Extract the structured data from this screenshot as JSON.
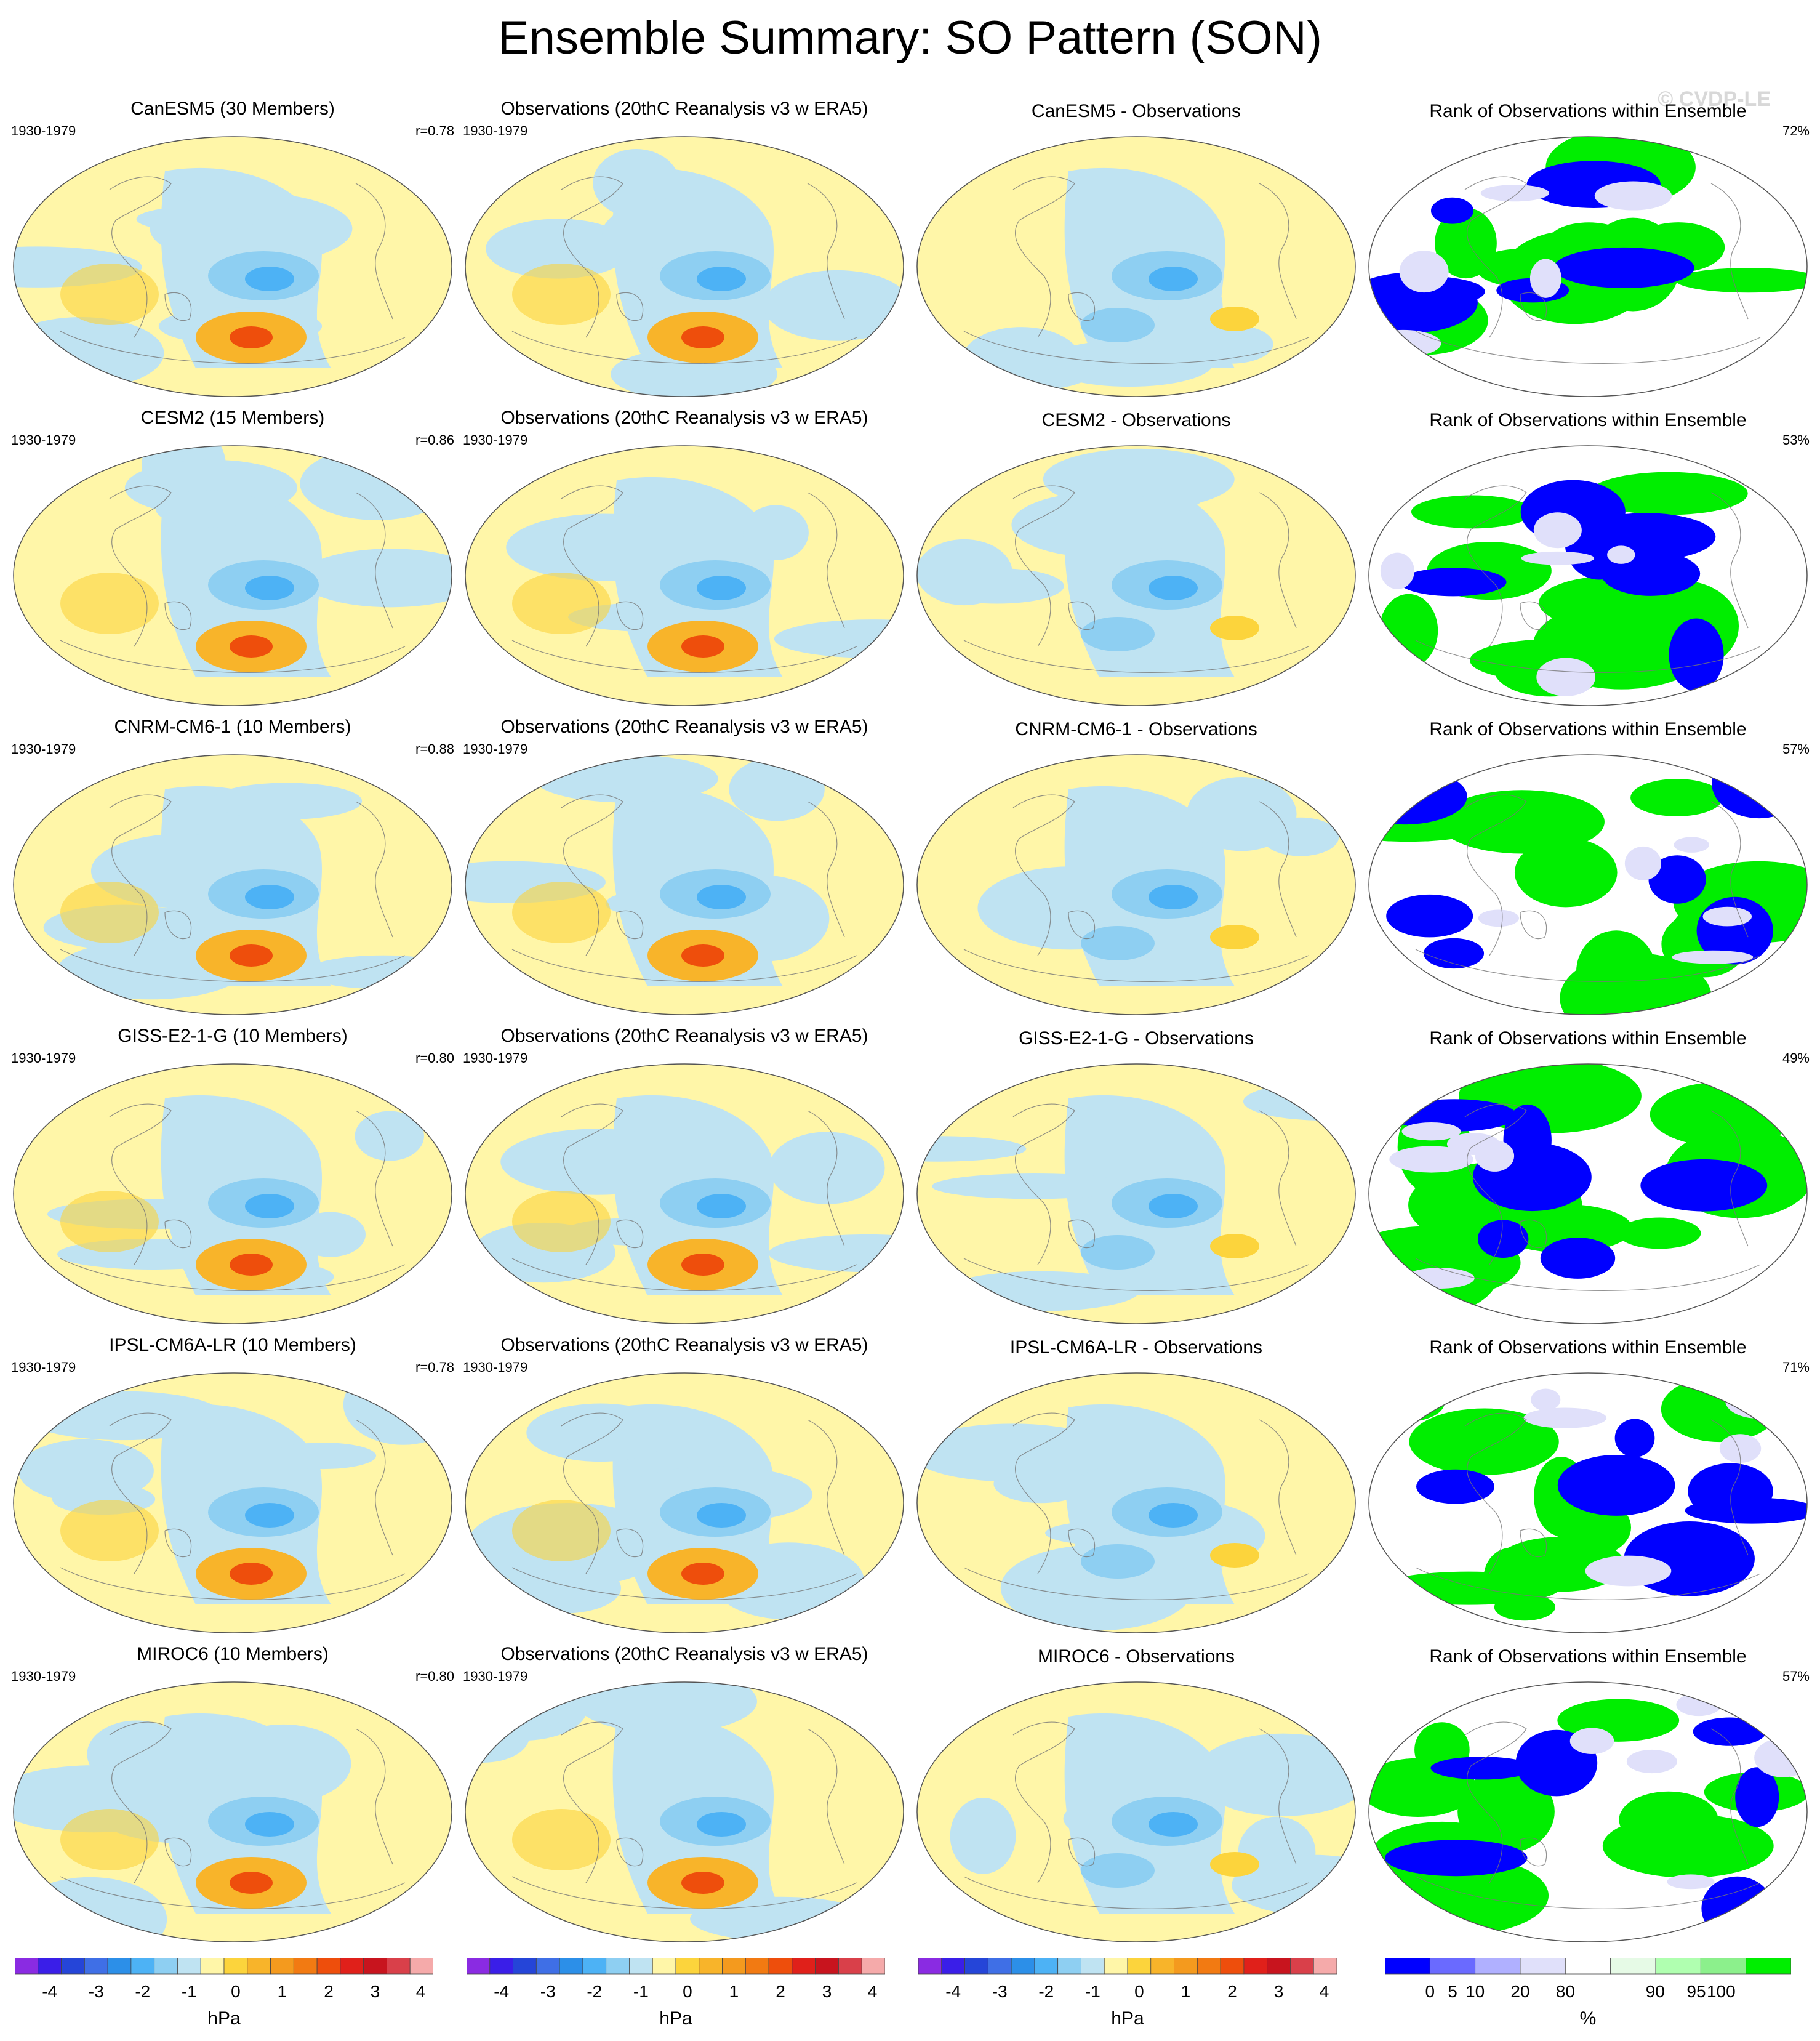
{
  "title": "Ensemble Summary: SO Pattern (SON)",
  "watermark": "© CVDP-LE",
  "period": "1930-1979",
  "obs_title": "Observations (20thC Reanalysis v3 w ERA5)",
  "rank_title": "Rank of Observations within Ensemble",
  "rows": [
    {
      "model_title": "CanESM5 (30 Members)",
      "r": "r=0.78",
      "diff_title": "CanESM5 - Observations",
      "rank_pct": "72%"
    },
    {
      "model_title": "CESM2 (15 Members)",
      "r": "r=0.86",
      "diff_title": "CESM2 - Observations",
      "rank_pct": "53%"
    },
    {
      "model_title": "CNRM-CM6-1 (10 Members)",
      "r": "r=0.88",
      "diff_title": "CNRM-CM6-1 - Observations",
      "rank_pct": "57%"
    },
    {
      "model_title": "GISS-E2-1-G (10 Members)",
      "r": "r=0.80",
      "diff_title": "GISS-E2-1-G - Observations",
      "rank_pct": "49%"
    },
    {
      "model_title": "IPSL-CM6A-LR (10 Members)",
      "r": "r=0.78",
      "diff_title": "IPSL-CM6A-LR - Observations",
      "rank_pct": "71%"
    },
    {
      "model_title": "MIROC6 (10 Members)",
      "r": "r=0.80",
      "diff_title": "MIROC6 - Observations",
      "rank_pct": "57%"
    }
  ],
  "colorbar_hpa": {
    "unit": "hPa",
    "colors": [
      "#8a2be2",
      "#3a1ee8",
      "#2545d8",
      "#3f6fe6",
      "#2c8fe8",
      "#4db2f5",
      "#8ecff2",
      "#bfe3f2",
      "#fff6a8",
      "#fcd43c",
      "#f8b42a",
      "#f49a1e",
      "#f27a12",
      "#ee4e0c",
      "#e0201a",
      "#c8141e",
      "#d9404a",
      "#f5aaaa"
    ],
    "tick_labels": [
      "-4",
      "-3",
      "-2",
      "-1",
      "0",
      "1",
      "2",
      "3",
      "4"
    ]
  },
  "colorbar_rank": {
    "unit": "%",
    "colors": [
      "#0000ff",
      "#6a6aff",
      "#b0b0ff",
      "#e0e0fa",
      "#ffffff",
      "#e6fae6",
      "#b0ffb0",
      "#8cf08c",
      "#00ee00"
    ],
    "tick_labels": [
      "0",
      "5",
      "10",
      "20",
      "80",
      "90",
      "95",
      "100"
    ]
  },
  "map_colors": {
    "ocean_yellow": "#fff6a8",
    "light_blue": "#bfe3f2",
    "mid_blue": "#8ecff2",
    "blue": "#4db2f5",
    "orange": "#f8b42a",
    "red": "#ee4e0c",
    "rank_blue": "#0000ff",
    "rank_green": "#00ee00",
    "rank_lavender": "#e0e0fa"
  }
}
